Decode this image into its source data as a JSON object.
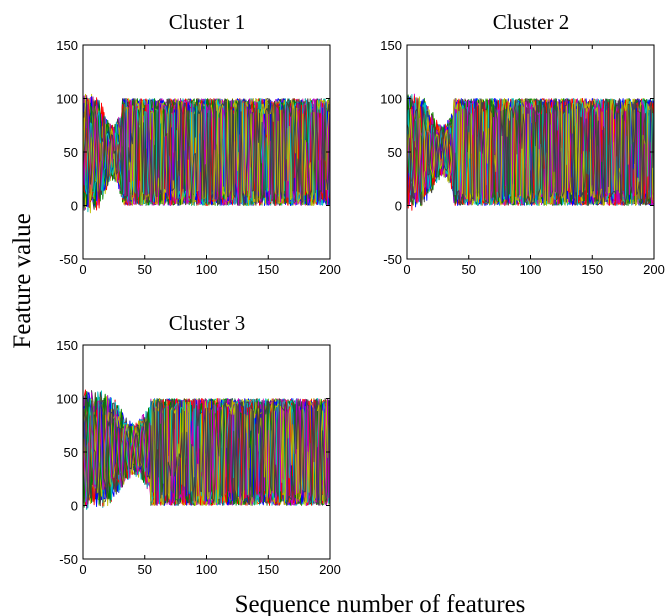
{
  "figure": {
    "ylabel": "Feature value",
    "xlabel": "Sequence number of features"
  },
  "series_colors": [
    "#0000ff",
    "#008000",
    "#ff0000",
    "#00bfbf",
    "#bf00bf",
    "#bfbf00",
    "#404040"
  ],
  "chart_data": [
    {
      "type": "line",
      "title": "Cluster 1",
      "xlim": [
        0,
        200
      ],
      "ylim": [
        -50,
        150
      ],
      "xticks": [
        0,
        50,
        100,
        150,
        200
      ],
      "yticks": [
        -50,
        0,
        50,
        100,
        150
      ],
      "transition_x": 32,
      "envelope": {
        "early_min": -10,
        "early_max": 108,
        "late_min": 0,
        "late_max": 100
      },
      "grid": false
    },
    {
      "type": "line",
      "title": "Cluster 2",
      "xlim": [
        0,
        200
      ],
      "ylim": [
        -50,
        150
      ],
      "xticks": [
        0,
        50,
        100,
        150,
        200
      ],
      "yticks": [
        -50,
        0,
        50,
        100,
        150
      ],
      "transition_x": 38,
      "envelope": {
        "early_min": -5,
        "early_max": 106,
        "late_min": 0,
        "late_max": 100
      },
      "grid": false
    },
    {
      "type": "line",
      "title": "Cluster 3",
      "xlim": [
        0,
        200
      ],
      "ylim": [
        -50,
        150
      ],
      "xticks": [
        0,
        50,
        100,
        150,
        200
      ],
      "yticks": [
        -50,
        0,
        50,
        100,
        150
      ],
      "transition_x": 55,
      "envelope": {
        "early_min": -5,
        "early_max": 110,
        "late_min": 0,
        "late_max": 100
      },
      "grid": false
    }
  ]
}
